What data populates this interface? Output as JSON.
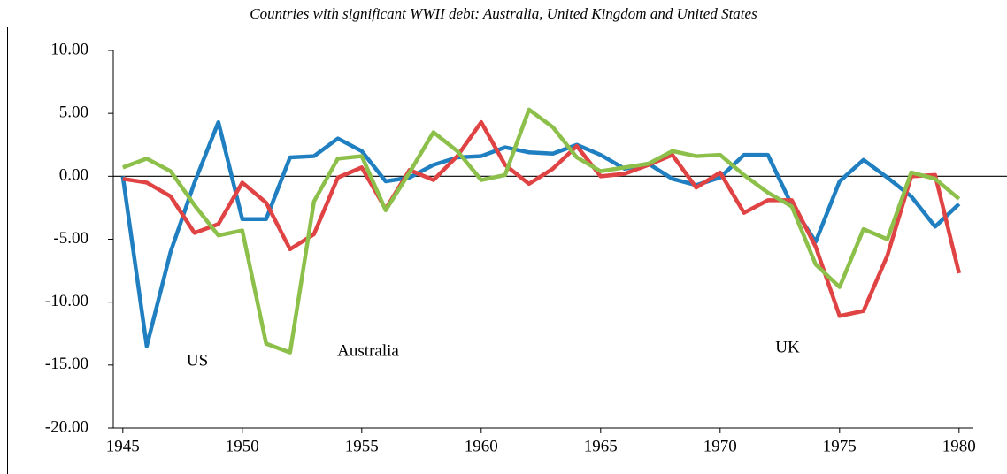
{
  "chart_data": {
    "type": "line",
    "title": "Countries with significant WWII debt: Australia, United Kingdom and United States",
    "x": [
      1945,
      1946,
      1947,
      1948,
      1949,
      1950,
      1951,
      1952,
      1953,
      1954,
      1955,
      1956,
      1957,
      1958,
      1959,
      1960,
      1961,
      1962,
      1963,
      1964,
      1965,
      1966,
      1967,
      1968,
      1969,
      1970,
      1971,
      1972,
      1973,
      1974,
      1975,
      1976,
      1977,
      1978,
      1979,
      1980
    ],
    "series": [
      {
        "color": "#1f7fc0",
        "values": [
          0.0,
          -13.5,
          -6.0,
          -0.5,
          4.3,
          -3.4,
          -3.4,
          1.5,
          1.6,
          3.0,
          2.0,
          -0.4,
          -0.1,
          0.9,
          1.5,
          1.6,
          2.3,
          1.9,
          1.8,
          2.5,
          1.7,
          0.6,
          1.0,
          -0.2,
          -0.7,
          -0.1,
          1.7,
          1.7,
          -2.3,
          -5.2,
          -0.4,
          1.3,
          -0.1,
          -1.6,
          -4.0,
          -2.2
        ]
      },
      {
        "color": "#e04343",
        "values": [
          -0.2,
          -0.5,
          -1.6,
          -4.5,
          -3.8,
          -0.5,
          -2.1,
          -5.8,
          -4.6,
          -0.1,
          0.7,
          -2.6,
          0.5,
          -0.3,
          1.6,
          4.3,
          0.9,
          -0.6,
          0.6,
          2.4,
          0.0,
          0.2,
          0.9,
          1.7,
          -0.9,
          0.3,
          -2.9,
          -1.9,
          -1.9,
          -5.6,
          -11.1,
          -10.7,
          -6.3,
          0.0,
          0.1,
          -7.7
        ]
      },
      {
        "color": "#8cc04a",
        "values": [
          0.7,
          1.4,
          0.4,
          -2.3,
          -4.7,
          -4.3,
          -13.3,
          -14.0,
          -2.0,
          1.4,
          1.6,
          -2.7,
          0.3,
          3.5,
          2.0,
          -0.3,
          0.1,
          5.3,
          3.9,
          1.5,
          0.4,
          0.7,
          1.0,
          2.0,
          1.6,
          1.7,
          0.1,
          -1.3,
          -2.4,
          -7.0,
          -8.8,
          -4.2,
          -5.0,
          0.3,
          -0.2,
          -1.8
        ]
      }
    ],
    "annotations": [
      "US",
      "Australia",
      "UK"
    ],
    "xlim": [
      1944.6,
      1980.6
    ],
    "xticks": [
      1945,
      1950,
      1955,
      1960,
      1965,
      1970,
      1975,
      1980
    ],
    "ylim": [
      -20,
      10
    ],
    "yticks": [
      {
        "value": -20,
        "label": "-20.00"
      },
      {
        "value": -15,
        "label": "-15.00"
      },
      {
        "value": -10,
        "label": "-10.00"
      },
      {
        "value": -5,
        "label": "-5.00"
      },
      {
        "value": 0,
        "label": "0.00"
      },
      {
        "value": 5,
        "label": "5.00"
      },
      {
        "value": 10,
        "label": "10.00"
      }
    ],
    "grid": false
  }
}
